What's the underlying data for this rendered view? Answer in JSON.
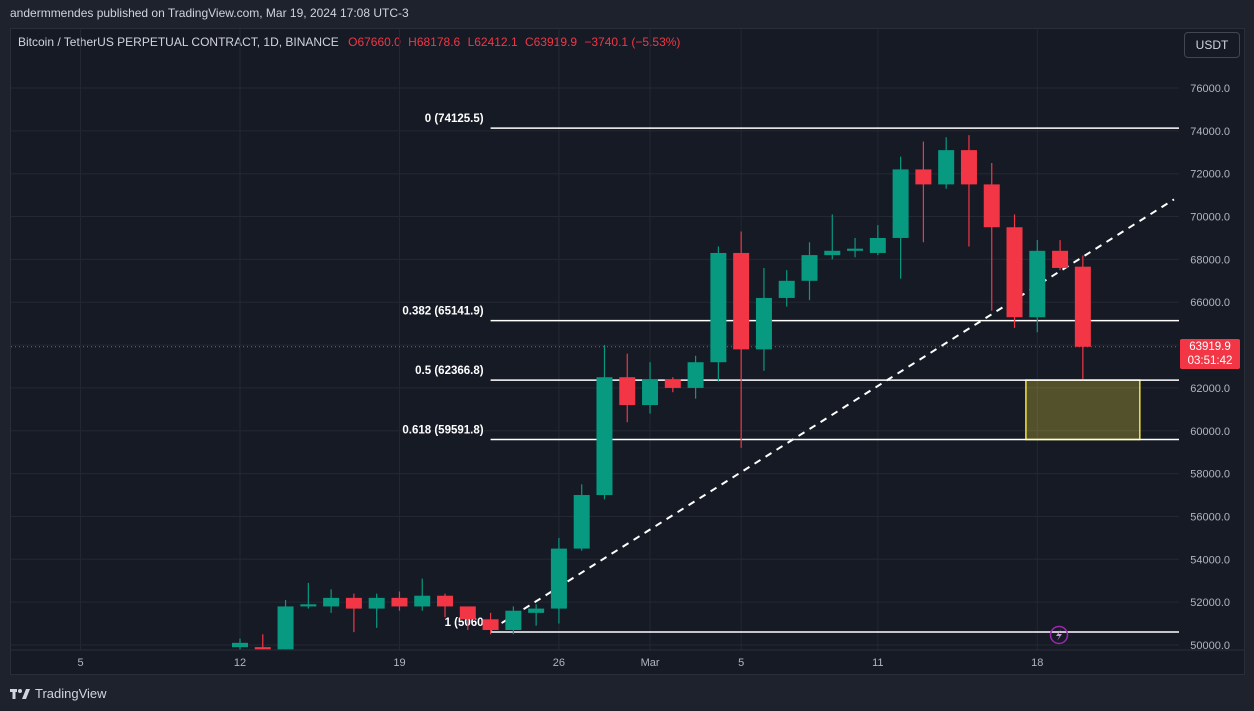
{
  "header": {
    "published": "andermmendes published on TradingView.com, Mar 19, 2024 17:08 UTC-3"
  },
  "legend": {
    "symbol": "Bitcoin / TetherUS PERPETUAL CONTRACT, 1D, BINANCE",
    "open": "O67660.0",
    "high": "H68178.6",
    "low": "L62412.1",
    "close": "C63919.9",
    "change": "−3740.1 (−5.53%)"
  },
  "currency_button": "USDT",
  "price_label": {
    "price": "63919.9",
    "countdown": "03:51:42"
  },
  "footer": {
    "brand": "TradingView",
    "logo_icon": "tradingview-logo-icon"
  },
  "chart_data": {
    "type": "candlestick",
    "timeframe": "1D",
    "ylim": [
      50000,
      77000
    ],
    "y_ticks": [
      50000,
      52000,
      54000,
      56000,
      58000,
      60000,
      62000,
      64000,
      66000,
      68000,
      70000,
      72000,
      74000,
      76000
    ],
    "y_tick_labels": [
      "50000.0",
      "52000.0",
      "54000.0",
      "56000.0",
      "58000.0",
      "60000.0",
      "62000.0",
      "64000.0",
      "66000.0",
      "68000.0",
      "70000.0",
      "72000.0",
      "74000.0",
      "76000.0"
    ],
    "x_ticks": [
      {
        "label": "5",
        "day": -2
      },
      {
        "label": "12",
        "day": 5
      },
      {
        "label": "19",
        "day": 12
      },
      {
        "label": "26",
        "day": 19
      },
      {
        "label": "Mar",
        "day": 23
      },
      {
        "label": "5",
        "day": 27
      },
      {
        "label": "11",
        "day": 33
      },
      {
        "label": "18",
        "day": 40
      }
    ],
    "candles": [
      {
        "o": 49900,
        "h": 50300,
        "l": 49800,
        "c": 50100
      },
      {
        "o": 49900,
        "h": 50500,
        "l": 49800,
        "c": 49800
      },
      {
        "o": 49800,
        "h": 52100,
        "l": 49800,
        "c": 51800
      },
      {
        "o": 51800,
        "h": 52900,
        "l": 51700,
        "c": 51900
      },
      {
        "o": 51800,
        "h": 52600,
        "l": 51500,
        "c": 52200
      },
      {
        "o": 52200,
        "h": 52400,
        "l": 50600,
        "c": 51700
      },
      {
        "o": 51700,
        "h": 52400,
        "l": 50800,
        "c": 52200
      },
      {
        "o": 52200,
        "h": 52500,
        "l": 51600,
        "c": 51800
      },
      {
        "o": 51800,
        "h": 53100,
        "l": 51600,
        "c": 52300
      },
      {
        "o": 52300,
        "h": 52400,
        "l": 51300,
        "c": 51800
      },
      {
        "o": 51800,
        "h": 51800,
        "l": 50700,
        "c": 51200
      },
      {
        "o": 51200,
        "h": 51500,
        "l": 50500,
        "c": 50700
      },
      {
        "o": 50700,
        "h": 51800,
        "l": 50500,
        "c": 51600
      },
      {
        "o": 51500,
        "h": 51900,
        "l": 50900,
        "c": 51700
      },
      {
        "o": 51700,
        "h": 55000,
        "l": 51000,
        "c": 54500
      },
      {
        "o": 54500,
        "h": 57500,
        "l": 54400,
        "c": 57000
      },
      {
        "o": 57000,
        "h": 64000,
        "l": 56800,
        "c": 62500
      },
      {
        "o": 62500,
        "h": 63600,
        "l": 60400,
        "c": 61200
      },
      {
        "o": 61200,
        "h": 63200,
        "l": 60800,
        "c": 62400
      },
      {
        "o": 62400,
        "h": 62500,
        "l": 61800,
        "c": 62000
      },
      {
        "o": 62000,
        "h": 63500,
        "l": 61500,
        "c": 63200
      },
      {
        "o": 63200,
        "h": 68600,
        "l": 62300,
        "c": 68300
      },
      {
        "o": 68300,
        "h": 69300,
        "l": 59200,
        "c": 63800
      },
      {
        "o": 63800,
        "h": 67600,
        "l": 62800,
        "c": 66200
      },
      {
        "o": 66200,
        "h": 67500,
        "l": 65800,
        "c": 67000
      },
      {
        "o": 67000,
        "h": 68800,
        "l": 66100,
        "c": 68200
      },
      {
        "o": 68200,
        "h": 70100,
        "l": 68000,
        "c": 68400
      },
      {
        "o": 68400,
        "h": 69000,
        "l": 68100,
        "c": 68500
      },
      {
        "o": 68300,
        "h": 69600,
        "l": 68200,
        "c": 69000
      },
      {
        "o": 69000,
        "h": 72800,
        "l": 67100,
        "c": 72200
      },
      {
        "o": 72200,
        "h": 73500,
        "l": 68800,
        "c": 71500
      },
      {
        "o": 71500,
        "h": 73700,
        "l": 71300,
        "c": 73100
      },
      {
        "o": 73100,
        "h": 73800,
        "l": 68600,
        "c": 71500
      },
      {
        "o": 71500,
        "h": 72500,
        "l": 65600,
        "c": 69500
      },
      {
        "o": 69500,
        "h": 70100,
        "l": 64800,
        "c": 65300
      },
      {
        "o": 65300,
        "h": 68900,
        "l": 64600,
        "c": 68400
      },
      {
        "o": 68400,
        "h": 68900,
        "l": 67500,
        "c": 67600
      },
      {
        "o": 67660,
        "h": 68178.6,
        "l": 62412.1,
        "c": 63919.9
      }
    ],
    "first_candle_day": 5,
    "fib_levels": [
      {
        "ratio": "0",
        "price": 74125.5,
        "label": "0 (74125.5)"
      },
      {
        "ratio": "0.382",
        "price": 65141.9,
        "label": "0.382 (65141.9)"
      },
      {
        "ratio": "0.5",
        "price": 62366.8,
        "label": "0.5 (62366.8)"
      },
      {
        "ratio": "0.618",
        "price": 59591.8,
        "label": "0.618 (59591.8)"
      },
      {
        "ratio": "1",
        "price": 50608,
        "label": "1 (5060"
      }
    ],
    "fib_start_day": 16,
    "trend_line": {
      "from": {
        "day": 16,
        "price": 50700
      },
      "to": {
        "day": 46,
        "price": 70800
      }
    },
    "zone": {
      "from_day": 39.5,
      "to_day": 44.5,
      "top": 62366.8,
      "bottom": 59591.8
    },
    "last_price": 63919.9,
    "up_color": "#089981",
    "down_color": "#f23645",
    "zone_color": "#f5e33c"
  }
}
